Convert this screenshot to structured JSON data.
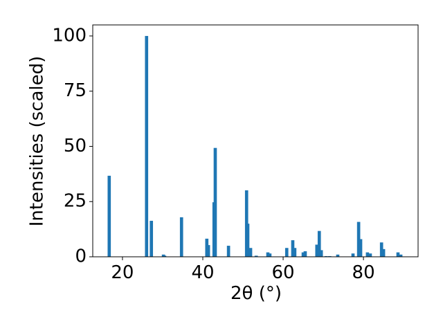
{
  "chart_data": {
    "type": "bar",
    "xlabel": "2θ (°)",
    "ylabel": "Intensities (scaled)",
    "x": [
      16.7,
      26.0,
      27.2,
      30.2,
      30.5,
      34.7,
      41.0,
      41.4,
      42.8,
      43.1,
      46.4,
      50.9,
      51.2,
      51.9,
      53.3,
      56.2,
      56.7,
      60.9,
      62.4,
      62.9,
      65.0,
      65.5,
      68.4,
      69.0,
      69.5,
      70.7,
      71.6,
      73.6,
      77.4,
      78.8,
      79.3,
      81.0,
      81.7,
      84.5,
      85.0,
      88.6,
      89.3
    ],
    "values": [
      36.7,
      100,
      16.3,
      1,
      0.5,
      17.9,
      8.2,
      5.3,
      24.7,
      49.3,
      5,
      30.1,
      15,
      4,
      0.5,
      2,
      1.5,
      4,
      7.5,
      4,
      2,
      2.5,
      5.5,
      11.7,
      3,
      0.3,
      0.3,
      1,
      1.5,
      15.8,
      8,
      2,
      1.5,
      6.5,
      3.5,
      2,
      1
    ],
    "color": "#1f77b4",
    "xlim": [
      12.6,
      93.6
    ],
    "ylim": [
      0,
      105
    ],
    "xticks": [
      20,
      40,
      60,
      80
    ],
    "yticks": [
      0,
      25,
      50,
      75,
      100
    ],
    "grid": false
  }
}
